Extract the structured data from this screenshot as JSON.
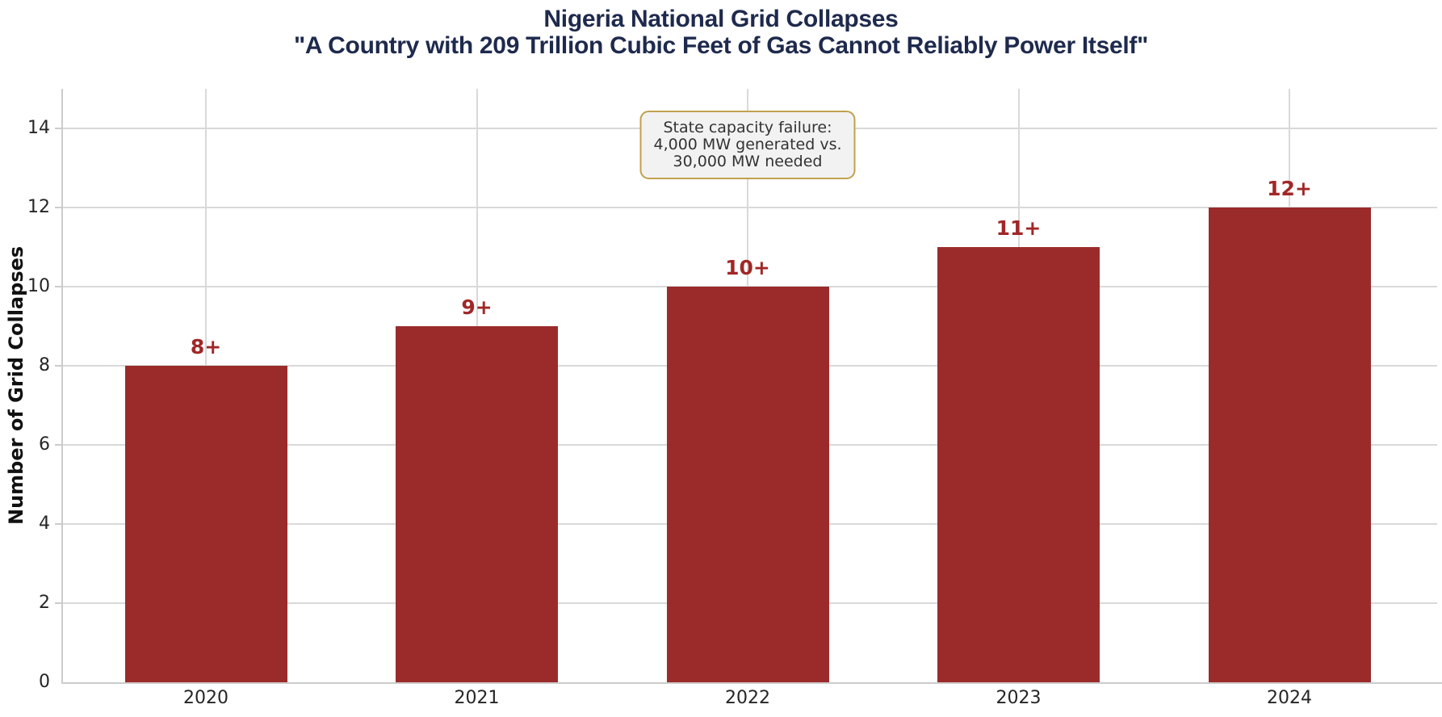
{
  "title": {
    "line1": "Nigeria National Grid Collapses",
    "line2": "\"A Country with 209 Trillion Cubic Feet of Gas Cannot Reliably Power Itself\"",
    "color": "#1e2a4d"
  },
  "annotation": {
    "lines": [
      "State capacity failure:",
      "4,000 MW generated vs.",
      "30,000 MW needed"
    ],
    "bg": "#f2f2f2",
    "border_color": "#c2a14d",
    "text_color": "#333333"
  },
  "axes": {
    "ylabel": "Number of Grid Collapses",
    "tick_color": "#262626"
  },
  "colors": {
    "background": "#ffffff",
    "grid": "#d9d9d9",
    "spine": "#cccccc"
  },
  "chart_data": {
    "type": "bar",
    "title": "Nigeria National Grid Collapses",
    "subtitle": "\"A Country with 209 Trillion Cubic Feet of Gas Cannot Reliably Power Itself\"",
    "categories": [
      "2020",
      "2021",
      "2022",
      "2023",
      "2024"
    ],
    "values": [
      8,
      9,
      10,
      11,
      12
    ],
    "bar_labels": [
      "8+",
      "9+",
      "10+",
      "11+",
      "12+"
    ],
    "xlabel": "",
    "ylabel": "Number of Grid Collapses",
    "ylim": [
      0,
      15
    ],
    "yticks": [
      0,
      2,
      4,
      6,
      8,
      10,
      12,
      14
    ],
    "grid": true,
    "legend": false,
    "bar_color": "#9b2b2b",
    "bar_label_color": "#a12727",
    "annotation": "State capacity failure:\n4,000 MW generated vs.\n30,000 MW needed",
    "annotation_anchor_category": "2022"
  }
}
